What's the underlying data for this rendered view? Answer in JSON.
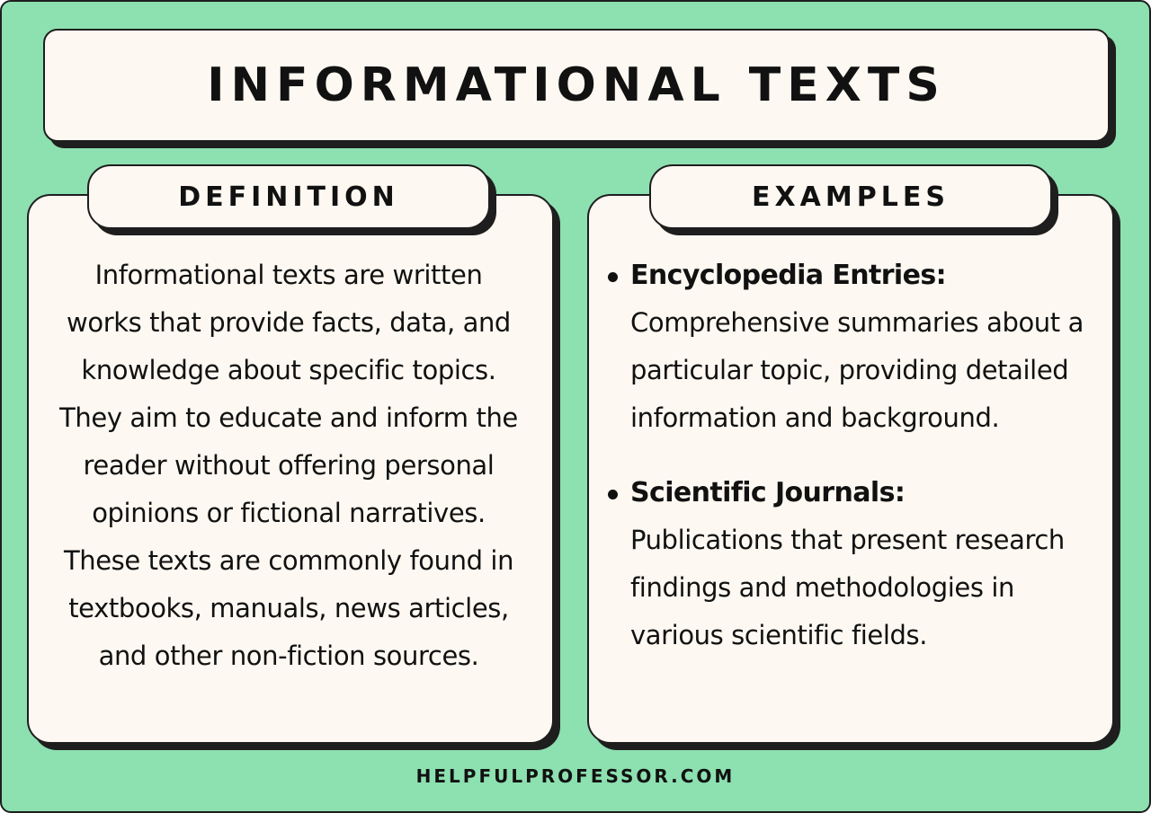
{
  "title": "INFORMATIONAL TEXTS",
  "definition": {
    "heading": "DEFINITION",
    "text": "Informational texts are written works that provide facts, data, and knowledge about specific topics. They aim to educate and inform the reader without offering personal opinions or fictional narratives. These texts are commonly found in textbooks, manuals, news articles, and other non-fiction sources."
  },
  "examples": {
    "heading": "EXAMPLES",
    "items": [
      {
        "title": "Encyclopedia Entries:",
        "description": "Comprehensive summaries about a particular topic, providing detailed information and background."
      },
      {
        "title": "Scientific Journals:",
        "description": "Publications that present research findings and methodologies in various scientific fields."
      }
    ]
  },
  "footer": "HELPFULPROFESSOR.COM",
  "colors": {
    "background": "#8de0b0",
    "card": "#fdf8f1",
    "ink": "#1e1e1e"
  }
}
